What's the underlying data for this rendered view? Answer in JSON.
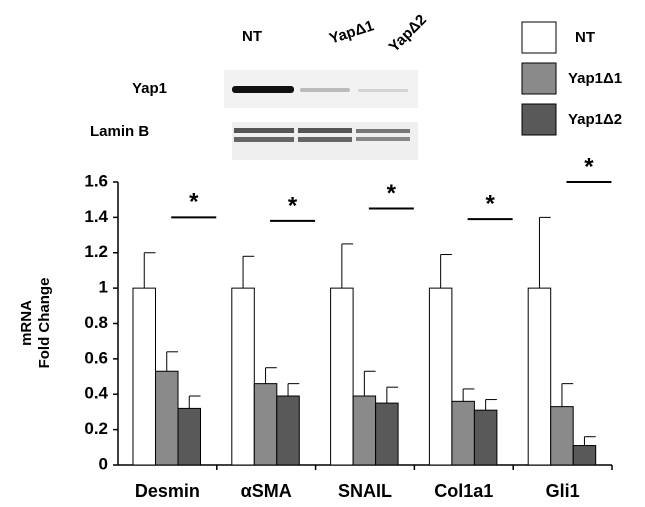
{
  "chart_data": {
    "type": "bar",
    "ylabel": [
      "mRNA",
      "Fold Change"
    ],
    "categories": [
      "Desmin",
      "αSMA",
      "SNAIL",
      "Col1a1",
      "Gli1"
    ],
    "series": [
      {
        "name": "NT",
        "color": "#ffffff",
        "values": [
          1,
          1,
          1,
          1,
          1
        ],
        "errors": [
          0.2,
          0.18,
          0.25,
          0.19,
          0.4
        ]
      },
      {
        "name": "Yap1Δ1",
        "color": "#8a8a8a",
        "values": [
          0.53,
          0.46,
          0.39,
          0.36,
          0.33
        ],
        "errors": [
          0.11,
          0.09,
          0.14,
          0.07,
          0.13
        ]
      },
      {
        "name": "Yap1Δ2",
        "color": "#595959",
        "values": [
          0.32,
          0.39,
          0.35,
          0.31,
          0.11
        ],
        "errors": [
          0.07,
          0.07,
          0.09,
          0.06,
          0.05
        ]
      }
    ],
    "significance": [
      "*",
      "*",
      "*",
      "*",
      "*"
    ],
    "ylim": [
      0,
      1.6
    ],
    "yticks": [
      0,
      0.2,
      0.4,
      0.6,
      0.8,
      1,
      1.2,
      1.4,
      1.6
    ],
    "grid": false
  },
  "blot": {
    "lanes": [
      "NT",
      "YapΔ1",
      "YapΔ2"
    ],
    "rows": [
      "Yap1",
      "Lamin B"
    ]
  }
}
